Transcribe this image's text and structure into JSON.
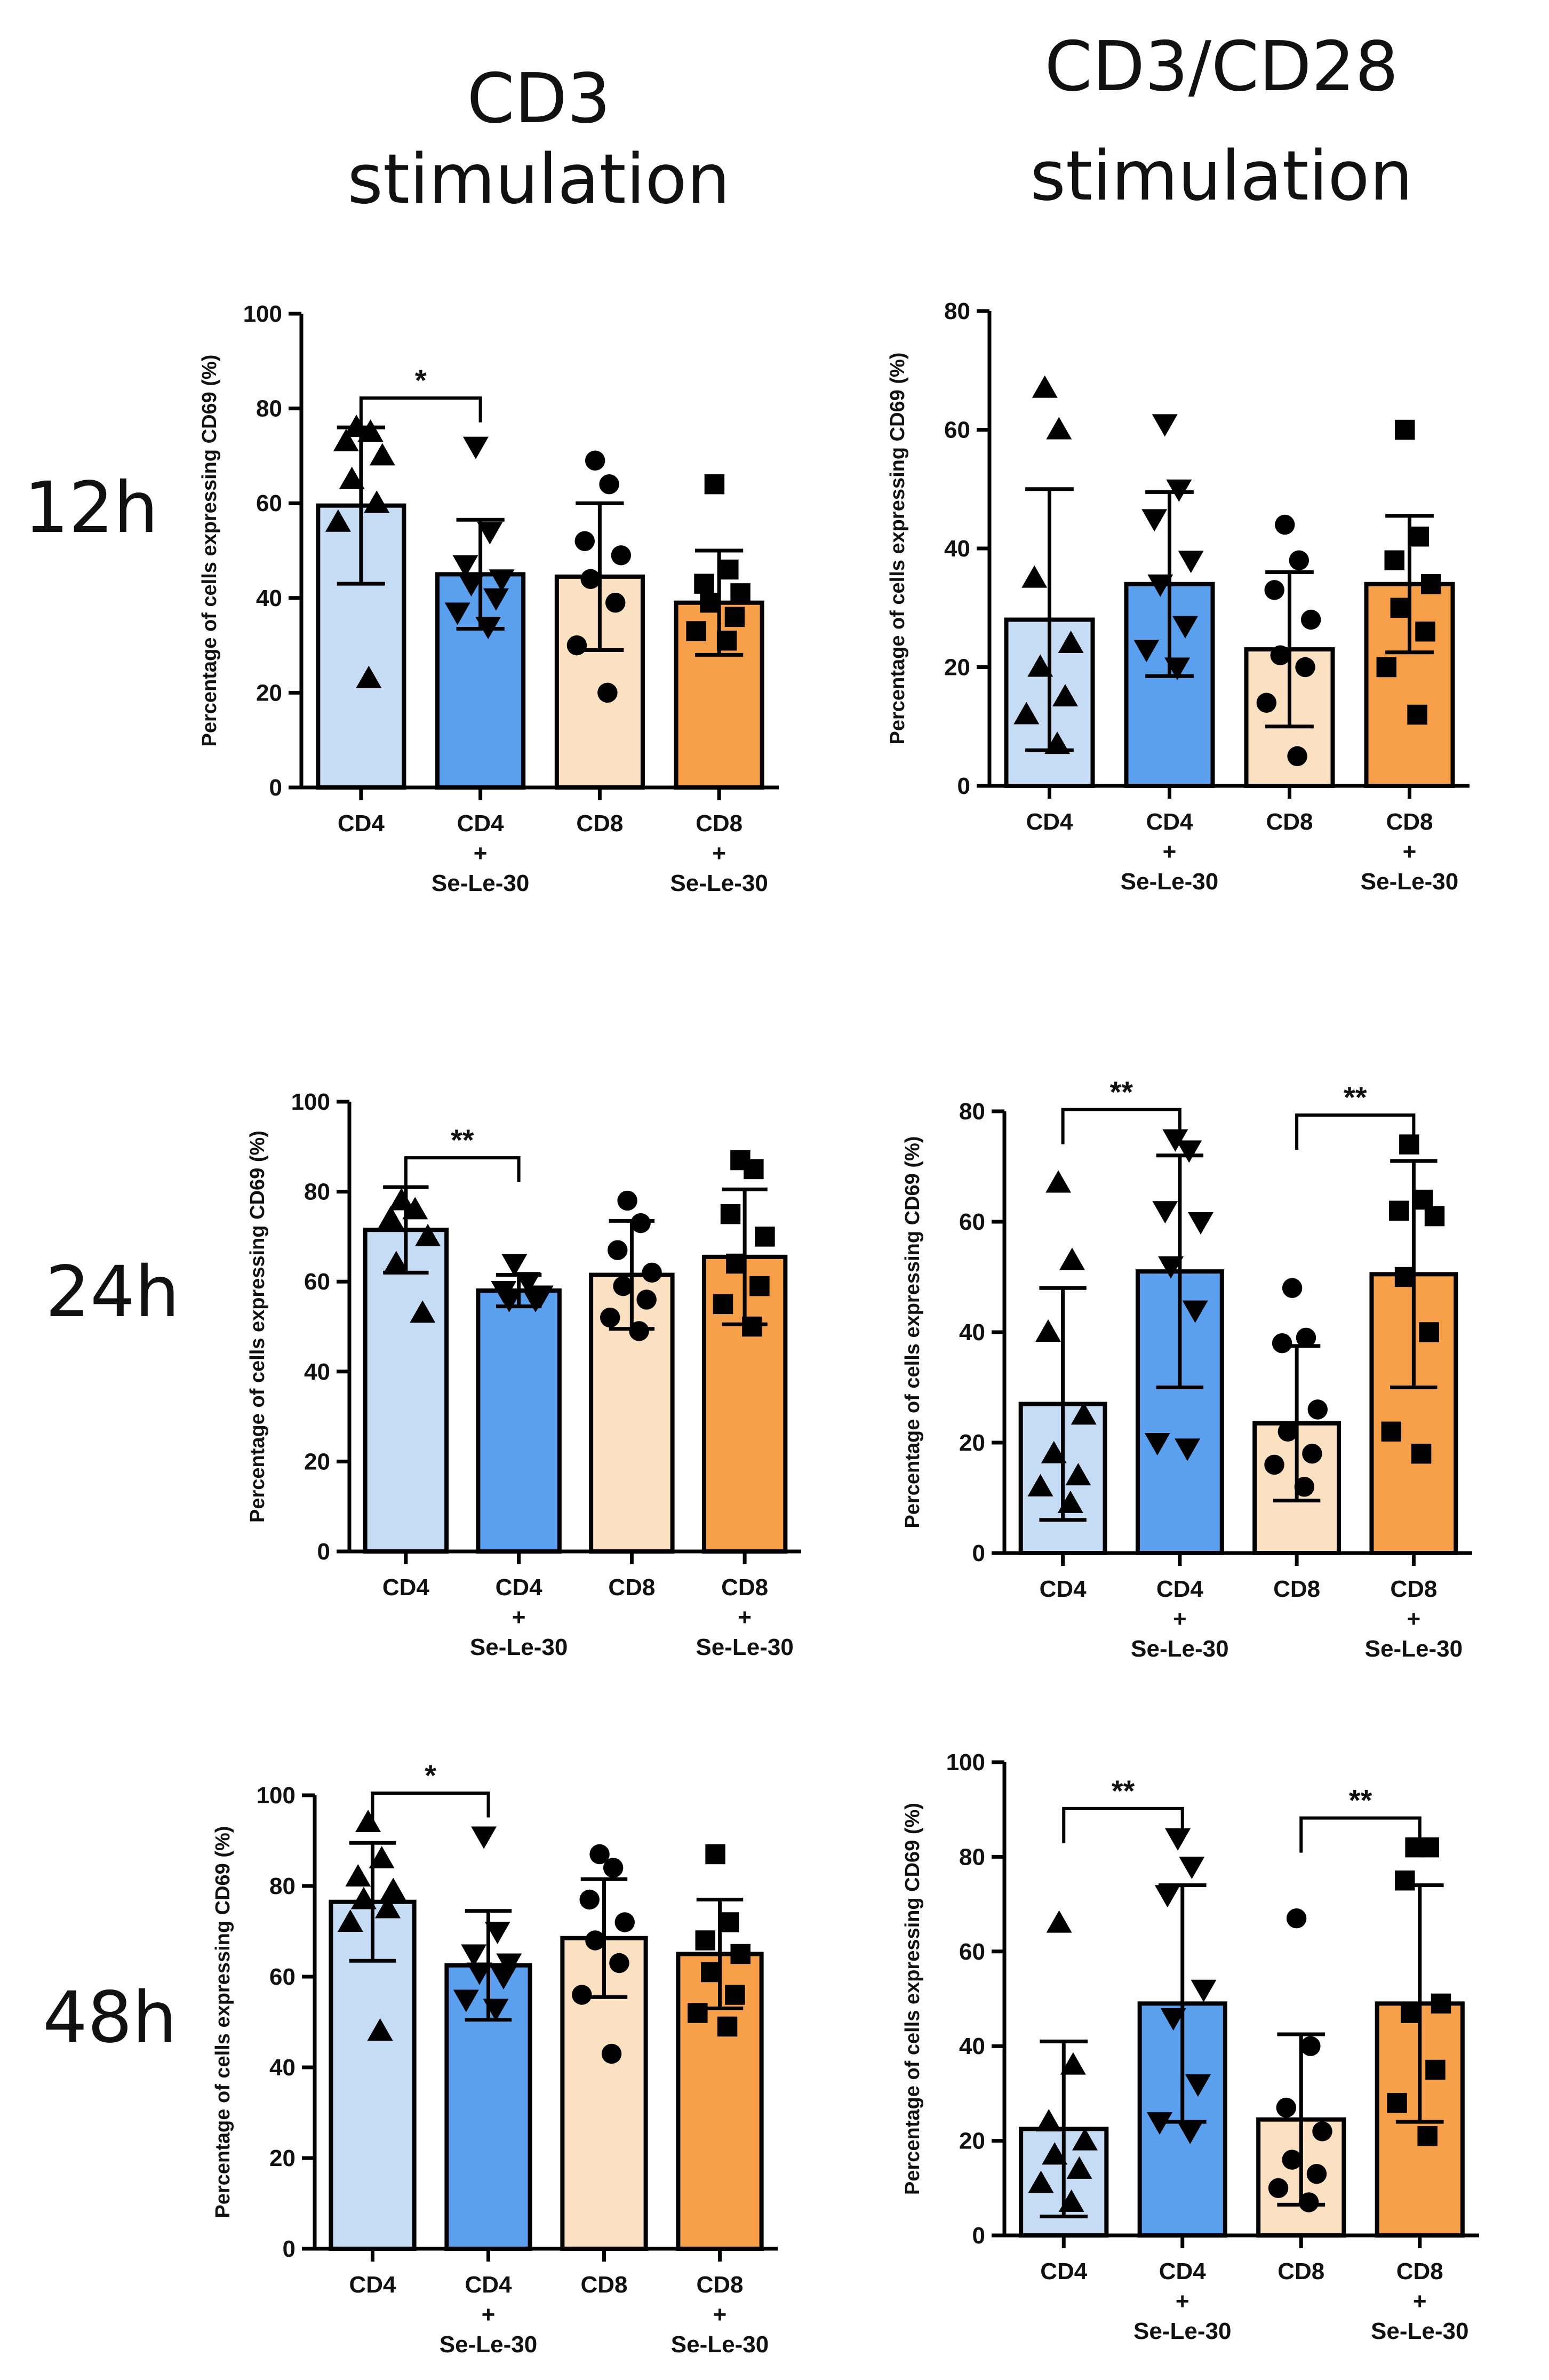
{
  "column_titles": {
    "cd3": "CD3 stimulation",
    "cd3cd28_line1": "CD3/CD28",
    "cd3cd28_line2": "stimulation"
  },
  "row_labels": {
    "h12": "12h",
    "h24": "24h",
    "h48": "48h"
  },
  "colors": {
    "CD4": "#c6dcf5",
    "CD4 + Se-Le-30": "#5aa0ee",
    "CD8": "#fbe0c2",
    "CD8 + Se-Le-30": "#f7a049",
    "axis": "#000000",
    "marker": "#000000"
  },
  "chart_data": [
    {
      "id": "cd3-12h",
      "type": "bar",
      "title": "CD3 stimulation 12h",
      "ylabel": "Percentage of cells expressing CD69 (%)",
      "ylim": [
        0,
        100
      ],
      "yticks": [
        0,
        20,
        40,
        60,
        80,
        100
      ],
      "categories": [
        [
          "CD4"
        ],
        [
          "CD4",
          "+",
          "Se-Le-30"
        ],
        [
          "CD8"
        ],
        [
          "CD8",
          "+",
          "Se-Le-30"
        ]
      ],
      "markers": [
        "triangle",
        "triangle-down",
        "circle",
        "square"
      ],
      "means": [
        59.5,
        45,
        44.5,
        39
      ],
      "sd": [
        16.5,
        11.5,
        15.5,
        11
      ],
      "points": [
        [
          76,
          75,
          73,
          70,
          65,
          60,
          56,
          23
        ],
        [
          72,
          54,
          47,
          44,
          43,
          40,
          37,
          34
        ],
        [
          69,
          64,
          52,
          49,
          44,
          39,
          30,
          20
        ],
        [
          64,
          46,
          43,
          41,
          39,
          36,
          33,
          31
        ]
      ],
      "significance": [
        {
          "from": 0,
          "to": 1,
          "label": "*"
        }
      ]
    },
    {
      "id": "cd3cd28-12h",
      "type": "bar",
      "title": "CD3/CD28 stimulation 12h",
      "ylabel": "Percentage of cells expressing CD69 (%)",
      "ylim": [
        0,
        80
      ],
      "yticks": [
        0,
        20,
        40,
        60,
        80
      ],
      "categories": [
        [
          "CD4"
        ],
        [
          "CD4",
          "+",
          "Se-Le-30"
        ],
        [
          "CD8"
        ],
        [
          "CD8",
          "+",
          "Se-Le-30"
        ]
      ],
      "markers": [
        "triangle",
        "triangle-down",
        "circle",
        "square"
      ],
      "means": [
        28,
        34,
        23,
        34
      ],
      "sd": [
        22,
        15.5,
        13,
        11.5
      ],
      "points": [
        [
          67,
          60,
          35,
          24,
          20,
          15,
          12,
          7
        ],
        [
          61,
          50,
          45,
          38,
          34,
          27,
          23,
          20
        ],
        [
          44,
          38,
          33,
          28,
          22,
          20,
          14,
          5
        ],
        [
          60,
          42,
          38,
          34,
          30,
          26,
          20,
          12
        ]
      ],
      "significance": []
    },
    {
      "id": "cd3-24h",
      "type": "bar",
      "title": "CD3 stimulation 24h",
      "ylabel": "Percentage of cells expressing CD69 (%)",
      "ylim": [
        0,
        100
      ],
      "yticks": [
        0,
        20,
        40,
        60,
        80,
        100
      ],
      "categories": [
        [
          "CD4"
        ],
        [
          "CD4",
          "+",
          "Se-Le-30"
        ],
        [
          "CD8"
        ],
        [
          "CD8",
          "+",
          "Se-Le-30"
        ]
      ],
      "markers": [
        "triangle",
        "triangle-down",
        "circle",
        "square"
      ],
      "means": [
        71.5,
        58,
        61.5,
        65.5
      ],
      "sd": [
        9.5,
        3.5,
        12,
        15
      ],
      "points": [
        [
          78,
          76,
          74,
          70,
          64,
          53
        ],
        [
          64,
          60,
          58,
          57,
          56,
          56
        ],
        [
          78,
          73,
          67,
          62,
          59,
          56,
          52,
          49
        ],
        [
          87,
          85,
          75,
          70,
          64,
          59,
          55,
          50
        ]
      ],
      "significance": [
        {
          "from": 0,
          "to": 1,
          "label": "**"
        }
      ]
    },
    {
      "id": "cd3cd28-24h",
      "type": "bar",
      "title": "CD3/CD28 stimulation 24h",
      "ylabel": "Percentage of cells expressing CD69 (%)",
      "ylim": [
        0,
        80
      ],
      "yticks": [
        0,
        20,
        40,
        60,
        80
      ],
      "categories": [
        [
          "CD4"
        ],
        [
          "CD4",
          "+",
          "Se-Le-30"
        ],
        [
          "CD8"
        ],
        [
          "CD8",
          "+",
          "Se-Le-30"
        ]
      ],
      "markers": [
        "triangle",
        "triangle-down",
        "circle",
        "square"
      ],
      "means": [
        27,
        51,
        23.5,
        50.5
      ],
      "sd": [
        21,
        21,
        14,
        20.5
      ],
      "points": [
        [
          67,
          53,
          40,
          25,
          18,
          14,
          12,
          9
        ],
        [
          75,
          73,
          62,
          60,
          52,
          44,
          20,
          19
        ],
        [
          48,
          39,
          38,
          26,
          22,
          18,
          16,
          12
        ],
        [
          74,
          64,
          62,
          61,
          50,
          40,
          22,
          18
        ]
      ],
      "significance": [
        {
          "from": 0,
          "to": 1,
          "label": "**"
        },
        {
          "from": 2,
          "to": 3,
          "label": "**"
        }
      ]
    },
    {
      "id": "cd3-48h",
      "type": "bar",
      "title": "CD3 stimulation 48h",
      "ylabel": "Percentage of cells expressing CD69 (%)",
      "ylim": [
        0,
        100
      ],
      "yticks": [
        0,
        20,
        40,
        60,
        80,
        100
      ],
      "categories": [
        [
          "CD4"
        ],
        [
          "CD4",
          "+",
          "Se-Le-30"
        ],
        [
          "CD8"
        ],
        [
          "CD8",
          "+",
          "Se-Le-30"
        ]
      ],
      "markers": [
        "triangle",
        "triangle-down",
        "circle",
        "square"
      ],
      "means": [
        76.5,
        62.5,
        68.5,
        65
      ],
      "sd": [
        13,
        12,
        13,
        12
      ],
      "points": [
        [
          94,
          86,
          82,
          79,
          77,
          75,
          72,
          48
        ],
        [
          91,
          70,
          65,
          63,
          61,
          60,
          55,
          53
        ],
        [
          87,
          84,
          77,
          72,
          68,
          63,
          56,
          43
        ],
        [
          87,
          72,
          68,
          65,
          61,
          56,
          52,
          49
        ]
      ],
      "significance": [
        {
          "from": 0,
          "to": 1,
          "label": "*"
        }
      ]
    },
    {
      "id": "cd3cd28-48h",
      "type": "bar",
      "title": "CD3/CD28 stimulation 48h",
      "ylabel": "Percentage of cells expressing CD69 (%)",
      "ylim": [
        0,
        100
      ],
      "yticks": [
        0,
        20,
        40,
        60,
        80,
        100
      ],
      "categories": [
        [
          "CD4"
        ],
        [
          "CD4",
          "+",
          "Se-Le-30"
        ],
        [
          "CD8"
        ],
        [
          "CD8",
          "+",
          "Se-Le-30"
        ]
      ],
      "markers": [
        "triangle",
        "triangle-down",
        "circle",
        "square"
      ],
      "means": [
        22.5,
        49,
        24.5,
        49
      ],
      "sd": [
        18.5,
        25,
        18,
        25
      ],
      "points": [
        [
          66,
          36,
          24,
          20,
          17,
          14,
          11,
          7
        ],
        [
          84,
          78,
          72,
          52,
          46,
          32,
          24,
          22
        ],
        [
          67,
          40,
          27,
          22,
          16,
          13,
          10,
          7
        ],
        [
          82,
          82,
          75,
          49,
          47,
          35,
          28,
          21
        ]
      ],
      "significance": [
        {
          "from": 0,
          "to": 1,
          "label": "**"
        },
        {
          "from": 2,
          "to": 3,
          "label": "**"
        }
      ]
    }
  ]
}
